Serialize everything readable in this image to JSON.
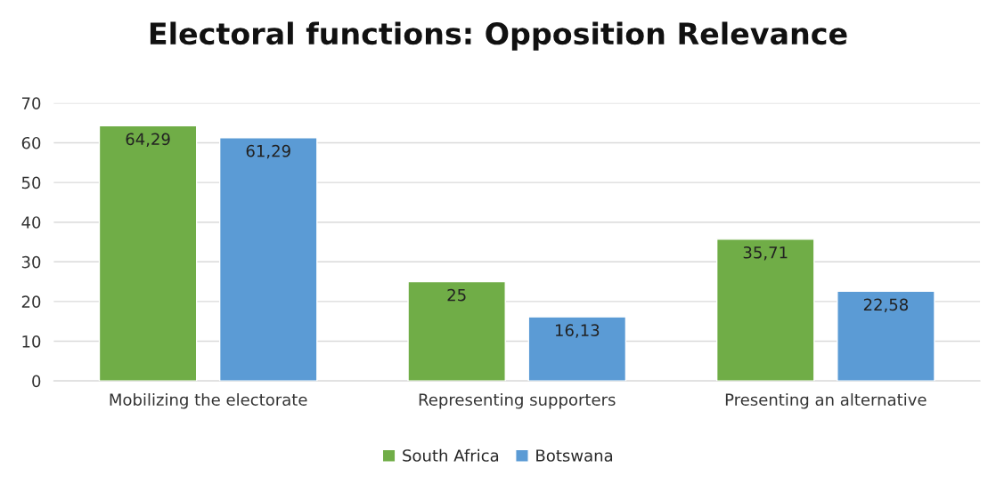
{
  "chart_data": {
    "type": "bar",
    "title": "Electoral functions: Opposition Relevance",
    "categories": [
      "Mobilizing the electorate",
      "Representing supporters",
      "Presenting an alternative"
    ],
    "series": [
      {
        "name": "South Africa",
        "color": "#70ad47",
        "values": [
          64.29,
          25,
          35.71
        ],
        "value_labels": [
          "64,29",
          "25",
          "35,71"
        ]
      },
      {
        "name": "Botswana",
        "color": "#5b9bd5",
        "values": [
          61.29,
          16.13,
          22.58
        ],
        "value_labels": [
          "61,29",
          "16,13",
          "22,58"
        ]
      }
    ],
    "ylim": [
      0,
      70
    ],
    "yticks": [
      0,
      10,
      20,
      30,
      40,
      50,
      60,
      70
    ],
    "grid": "y",
    "legend": "bottom"
  }
}
